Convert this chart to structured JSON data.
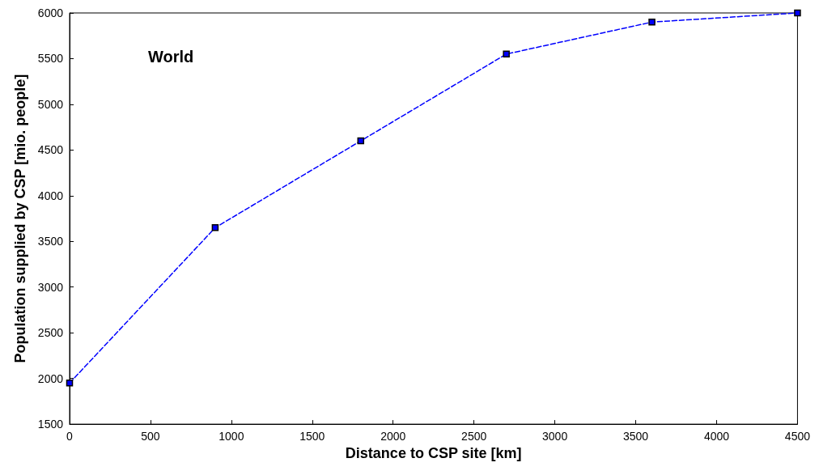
{
  "chart_data": {
    "type": "line",
    "xlabel": "Distance to CSP site [km]",
    "ylabel": "Population supplied by CSP [mio. people]",
    "annotations": [
      "World"
    ],
    "x": [
      0,
      900,
      1800,
      2700,
      3600,
      4500
    ],
    "series": [
      {
        "color": "#0000ff",
        "values": [
          1950,
          3650,
          4600,
          5550,
          5900,
          6000
        ]
      }
    ],
    "xlim": [
      0,
      4500
    ],
    "xticks": [
      0,
      500,
      1000,
      1500,
      2000,
      2500,
      3000,
      3500,
      4000,
      4500
    ],
    "ylim": [
      1500,
      6000
    ],
    "yticks": [
      1500,
      2000,
      2500,
      3000,
      3500,
      4000,
      4500,
      5000,
      5500,
      6000
    ],
    "grid": false,
    "marker": "square",
    "line_style": "dashed"
  }
}
